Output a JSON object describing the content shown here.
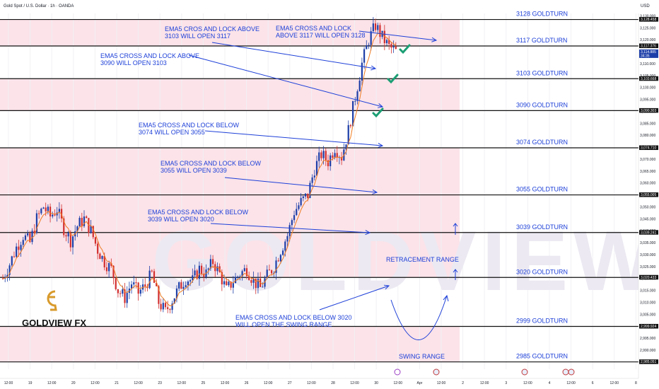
{
  "header": {
    "symbol": "Gold Spot / U.S. Dollar · 1h · OANDA",
    "currency": "USD"
  },
  "branding": {
    "logo_text": "GOLDVIEW FX",
    "watermark": "GOLDVIEW FX"
  },
  "colors": {
    "zone_fill": "#fbe3e9",
    "level_line": "#111111",
    "annotation_blue": "#1e40d8",
    "candle_up": "#1e3fa8",
    "candle_down": "#d32f2f",
    "ema_line": "#ef7c22",
    "checkmark": "#1a9e73",
    "logo_gold": "#d89a2b"
  },
  "chart_data": {
    "type": "candlestick",
    "instrument": "XAUUSD",
    "timeframe": "1h",
    "ylim": [
      2982,
      3131
    ],
    "y_ticks": [
      2985,
      2990,
      2995,
      3000,
      3005,
      3010,
      3015,
      3020,
      3025,
      3030,
      3035,
      3040,
      3045,
      3050,
      3055,
      3060,
      3065,
      3070,
      3075,
      3080,
      3085,
      3090,
      3095,
      3100,
      3105,
      3110,
      3115,
      3120,
      3125,
      3130
    ],
    "y_tick_labels": [
      "2,985.000",
      "2,990.000",
      "2,995.000",
      "3,000.000",
      "3,005.000",
      "3,010.000",
      "3,015.000",
      "3,020.000",
      "3,025.000",
      "3,030.000",
      "3,035.000",
      "3,040.000",
      "3,045.000",
      "3,050.000",
      "3,055.000",
      "3,060.000",
      "3,065.000",
      "3,070.000",
      "3,075.000",
      "3,080.000",
      "3,085.000",
      "3,090.000",
      "3,095.000",
      "3,100.000",
      "3,105.000",
      "3,110.000",
      "3,115.000",
      "3,120.000",
      "3,125.000",
      "3,130.000"
    ],
    "x_ticks": [
      {
        "label": "12:00",
        "t": 0
      },
      {
        "label": "19",
        "t": 1
      },
      {
        "label": "12:00",
        "t": 2
      },
      {
        "label": "20",
        "t": 3
      },
      {
        "label": "12:00",
        "t": 4
      },
      {
        "label": "21",
        "t": 5
      },
      {
        "label": "12:00",
        "t": 6
      },
      {
        "label": "23",
        "t": 7
      },
      {
        "label": "12:00",
        "t": 8
      },
      {
        "label": "25",
        "t": 9
      },
      {
        "label": "12:00",
        "t": 10
      },
      {
        "label": "26",
        "t": 11
      },
      {
        "label": "12:00",
        "t": 12
      },
      {
        "label": "27",
        "t": 13
      },
      {
        "label": "12:00",
        "t": 14
      },
      {
        "label": "28",
        "t": 15
      },
      {
        "label": "12:00",
        "t": 16
      },
      {
        "label": "30",
        "t": 17
      },
      {
        "label": "12:00",
        "t": 18
      },
      {
        "label": "Apr",
        "t": 19
      },
      {
        "label": "12:00",
        "t": 20
      },
      {
        "label": "2",
        "t": 21
      },
      {
        "label": "12:00",
        "t": 22
      },
      {
        "label": "3",
        "t": 23
      },
      {
        "label": "12:00",
        "t": 24
      },
      {
        "label": "4",
        "t": 25
      },
      {
        "label": "12:00",
        "t": 26
      },
      {
        "label": "6",
        "t": 27
      },
      {
        "label": "12:00",
        "t": 28
      },
      {
        "label": "8",
        "t": 29
      }
    ],
    "price_tags": [
      {
        "label": "3,128.458",
        "value": 3128.458
      },
      {
        "label": "3,117.376",
        "value": 3117.376
      },
      {
        "label": "3,114.885",
        "value": 3114.885,
        "countdown": "34:35"
      },
      {
        "label": "3,103.668",
        "value": 3103.668
      },
      {
        "label": "3,090.303",
        "value": 3090.303
      },
      {
        "label": "3,074.710",
        "value": 3074.71
      },
      {
        "label": "3,055.005",
        "value": 3055.005
      },
      {
        "label": "3,039.241",
        "value": 3039.241
      },
      {
        "label": "3,020.433",
        "value": 3020.433
      },
      {
        "label": "2,999.924",
        "value": 2999.924
      },
      {
        "label": "2,985.051",
        "value": 2985.051
      }
    ],
    "levels": [
      {
        "label": "3128 GOLDTURN",
        "value": 3128.458
      },
      {
        "label": "3117 GOLDTURN",
        "value": 3117.376
      },
      {
        "label": "3103 GOLDTURN",
        "value": 3103.668
      },
      {
        "label": "3090 GOLDTURN",
        "value": 3090.303
      },
      {
        "label": "3074 GOLDTURN",
        "value": 3074.71
      },
      {
        "label": "3055 GOLDTURN",
        "value": 3055.005
      },
      {
        "label": "3039 GOLDTURN",
        "value": 3039.241
      },
      {
        "label": "3020 GOLDTURN",
        "value": 3020.433
      },
      {
        "label": "2999 GOLDTURN",
        "value": 2999.924
      },
      {
        "label": "2985 GOLDTURN",
        "value": 2985.051
      }
    ],
    "zones": [
      {
        "from": 3117.376,
        "to": 3128.458
      },
      {
        "from": 3090.303,
        "to": 3103.668
      },
      {
        "from": 3039.241,
        "to": 3074.71
      },
      {
        "from": 3020.433,
        "to": 3039.241
      },
      {
        "from": 2985.051,
        "to": 2999.924
      }
    ],
    "annotations": [
      {
        "lines": [
          "EMA5 CROS AND LOCK ABOVE",
          "3103 WILL OPEN 3117"
        ]
      },
      {
        "lines": [
          "EMA5 CROSS AND LOCK",
          "ABOVE 3117 WILL OPEN 3128"
        ]
      },
      {
        "lines": [
          "EMA5 CROSS AND LOCK ABOVE",
          "3090 WILL OPEN 3103"
        ]
      },
      {
        "lines": [
          "EMA5 CROSS AND LOCK BELOW",
          "3074 WILL OPEN 3055"
        ]
      },
      {
        "lines": [
          "EMA5 CROSS AND LOCK BELOW",
          "3055 WILL OPEN 3039"
        ]
      },
      {
        "lines": [
          "EMA5 CROSS AND LOCK BELOW",
          "3039 WILL OPEN 3020"
        ]
      },
      {
        "lines": [
          "EMA5 CROSS AND LOCK BELOW 3020",
          "WILL OPEN THE SWING RANGE"
        ]
      },
      {
        "lines": [
          "RETRACEMENT RANGE"
        ]
      },
      {
        "lines": [
          "SWING RANGE"
        ]
      }
    ],
    "price_path": [
      3020,
      3026,
      3033,
      3038,
      3035,
      3045,
      3050,
      3046,
      3049,
      3041,
      3036,
      3042,
      3045,
      3040,
      3032,
      3027,
      3024,
      3015,
      3012,
      3018,
      3014,
      3017,
      3022,
      3010,
      3006,
      3011,
      3016,
      3020,
      3019,
      3024,
      3022,
      3027,
      3022,
      3015,
      3019,
      3022,
      3024,
      3019,
      3016,
      3021,
      3025,
      3032,
      3038,
      3048,
      3052,
      3055,
      3066,
      3072,
      3069,
      3075,
      3071,
      3082,
      3096,
      3110,
      3120,
      3126,
      3121,
      3117,
      3115
    ]
  }
}
